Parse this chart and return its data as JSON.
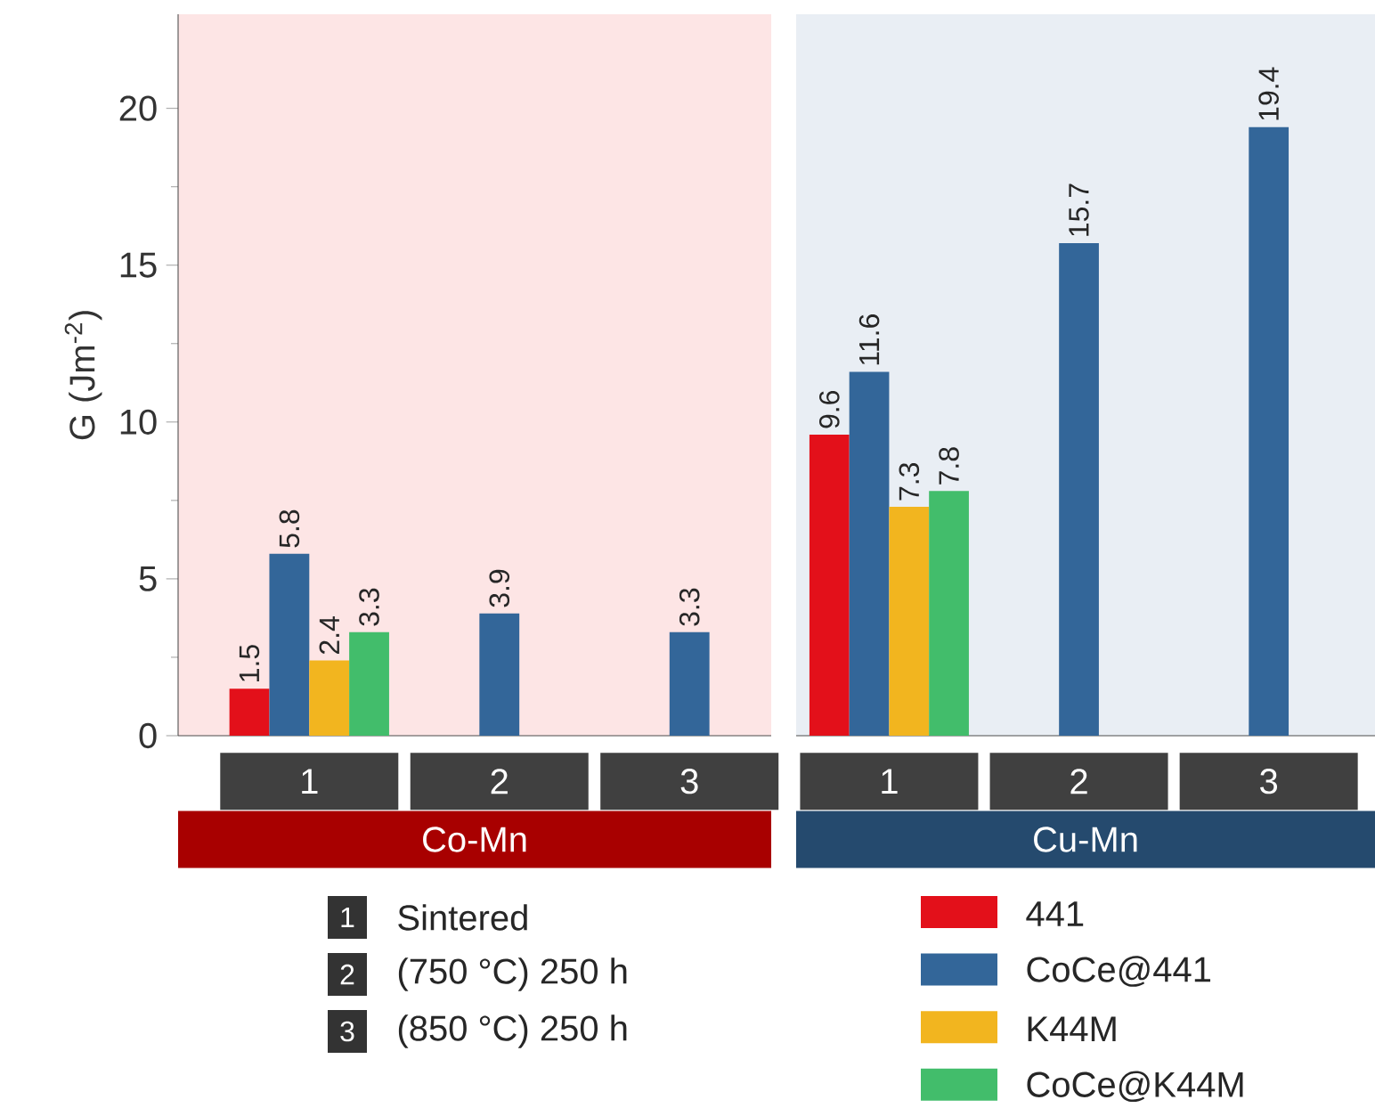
{
  "chart_data": [
    {
      "type": "bar",
      "xlabel": "Co-Mn",
      "ylabel": "G (Jm$^{-2}$)",
      "categories": [
        "1",
        "2",
        "3"
      ],
      "series": [
        {
          "name": "441",
          "color": "#e3101a",
          "values": [
            1.5,
            null,
            null
          ]
        },
        {
          "name": "CoCe@441",
          "color": "#336699",
          "values": [
            5.8,
            3.9,
            3.3
          ]
        },
        {
          "name": "K44M",
          "color": "#f2b51f",
          "values": [
            2.4,
            null,
            null
          ]
        },
        {
          "name": "CoCe@K44M",
          "color": "#42bd6b",
          "values": [
            3.3,
            null,
            null
          ]
        }
      ],
      "ylim": [
        0,
        23
      ],
      "yticks": [
        0,
        5,
        10,
        15,
        20
      ],
      "annotations": [
        "Sintered",
        "(750 °C) 250 h",
        "(850 °C) 250 h"
      ],
      "data_labels": true,
      "legend": "bottom"
    },
    {
      "type": "bar",
      "xlabel": "Cu-Mn",
      "categories": [
        "1",
        "2",
        "3"
      ],
      "series": [
        {
          "color": "#e3101a",
          "values": [
            9.6,
            null,
            null
          ]
        },
        {
          "color": "#336699",
          "values": [
            11.6,
            15.7,
            19.4
          ]
        },
        {
          "color": "#f2b51f",
          "values": [
            7.3,
            null,
            null
          ]
        },
        {
          "color": "#42bd6b",
          "values": [
            7.8,
            null,
            null
          ]
        }
      ],
      "ylim": [
        0,
        23
      ],
      "yticks": [
        0,
        5,
        10,
        15,
        20
      ],
      "tick_labels": "x",
      "data_labels": true
    }
  ]
}
